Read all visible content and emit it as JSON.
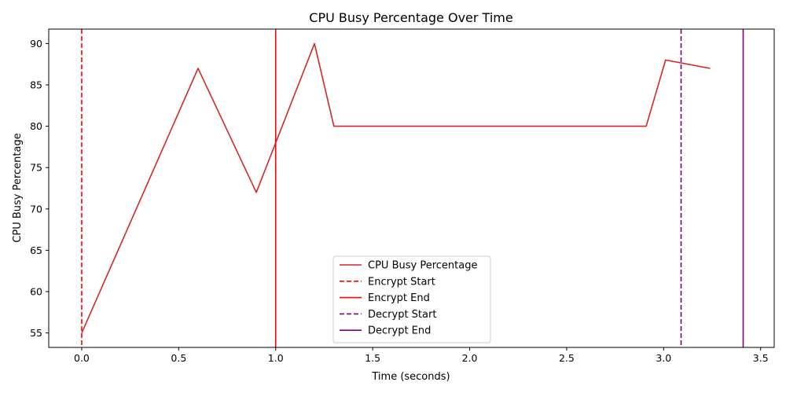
{
  "chart_data": {
    "type": "line",
    "title": "CPU Busy Percentage Over Time",
    "xlabel": "Time (seconds)",
    "ylabel": "CPU Busy Percentage",
    "xlim": [
      -0.17,
      3.57
    ],
    "ylim": [
      53.25,
      91.75
    ],
    "xticks": [
      0.0,
      0.5,
      1.0,
      1.5,
      2.0,
      2.5,
      3.0,
      3.5
    ],
    "xtick_labels": [
      "0.0",
      "0.5",
      "1.0",
      "1.5",
      "2.0",
      "2.5",
      "3.0",
      "3.5"
    ],
    "yticks": [
      55,
      60,
      65,
      70,
      75,
      80,
      85,
      90
    ],
    "ytick_labels": [
      "55",
      "60",
      "65",
      "70",
      "75",
      "80",
      "85",
      "90"
    ],
    "grid": false,
    "legend_position": "lower-center",
    "series": [
      {
        "name": "CPU Busy Percentage",
        "color": "#d62728",
        "x": [
          0.0,
          0.6,
          0.9,
          1.2,
          1.3,
          2.91,
          3.01,
          3.24
        ],
        "y": [
          55,
          87,
          72,
          90,
          80,
          80,
          88,
          87
        ]
      }
    ],
    "vlines": [
      {
        "name": "Encrypt Start",
        "x": 0.0,
        "color": "#ff0000",
        "style": "dashed"
      },
      {
        "name": "Encrypt End",
        "x": 1.0,
        "color": "#ff0000",
        "style": "solid"
      },
      {
        "name": "Decrypt Start",
        "x": 3.09,
        "color": "#800080",
        "style": "dashed"
      },
      {
        "name": "Decrypt End",
        "x": 3.41,
        "color": "#800080",
        "style": "solid"
      }
    ]
  }
}
